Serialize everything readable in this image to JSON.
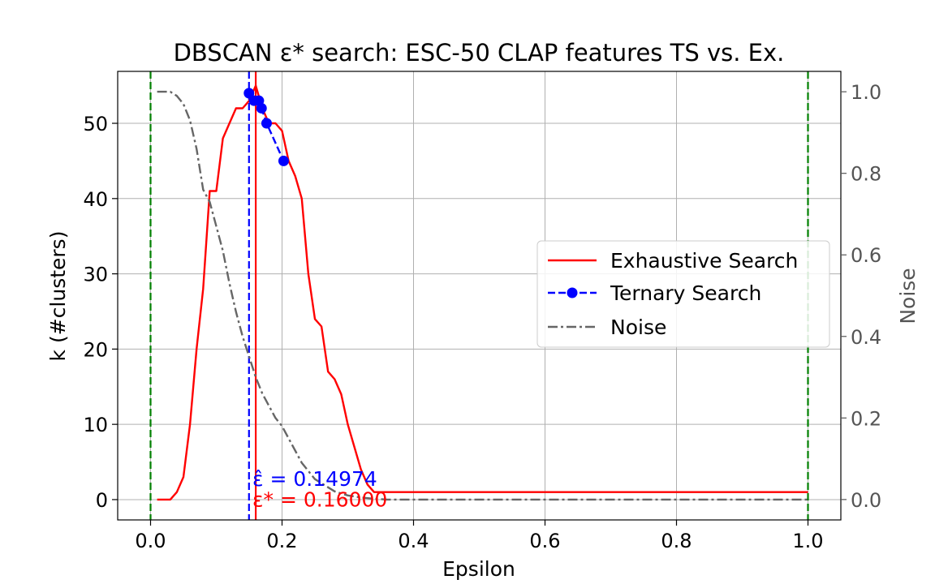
{
  "chart_data": {
    "type": "line",
    "title": "DBSCAN ε* search: ESC-50 CLAP features TS vs. Ex.",
    "xlabel": "Epsilon",
    "ylabel": "k (#clusters)",
    "ylabel_right": "Noise",
    "xlim": [
      -0.05,
      1.05
    ],
    "ylim": [
      -2.7,
      56.9
    ],
    "ylim_right": [
      -0.05,
      1.05
    ],
    "xticks": [
      "0.0",
      "0.2",
      "0.4",
      "0.6",
      "0.8",
      "1.0"
    ],
    "yticks": [
      "0",
      "10",
      "20",
      "30",
      "40",
      "50"
    ],
    "yticks_right": [
      "0.0",
      "0.2",
      "0.4",
      "0.6",
      "0.8",
      "1.0"
    ],
    "grid": true,
    "legend_position": "center-right",
    "series": [
      {
        "name": "Exhaustive Search",
        "axis": "left",
        "color": "#ff0000",
        "style": "solid",
        "x": [
          0.01,
          0.02,
          0.03,
          0.04,
          0.05,
          0.06,
          0.07,
          0.08,
          0.09,
          0.1,
          0.11,
          0.12,
          0.13,
          0.14,
          0.15,
          0.16,
          0.17,
          0.18,
          0.19,
          0.2,
          0.21,
          0.22,
          0.23,
          0.24,
          0.25,
          0.26,
          0.27,
          0.28,
          0.29,
          0.3,
          0.31,
          0.32,
          0.33,
          0.34,
          0.35,
          0.36,
          0.37,
          0.38,
          0.39,
          0.4,
          0.5,
          0.6,
          0.7,
          0.8,
          0.9,
          1.0
        ],
        "y": [
          0,
          0,
          0,
          1,
          3,
          10,
          20,
          28,
          41,
          41,
          48,
          50,
          52,
          52,
          53,
          55,
          52,
          50,
          50,
          49,
          45,
          43,
          40,
          30,
          24,
          23,
          17,
          16,
          14,
          10,
          7,
          4,
          2,
          1,
          1,
          1,
          1,
          1,
          1,
          1,
          1,
          1,
          1,
          1,
          1,
          1
        ]
      },
      {
        "name": "Ternary Search",
        "axis": "left",
        "color": "#0000ff",
        "style": "dashed",
        "marker": "circle",
        "x": [
          0.14974,
          0.1575,
          0.1647,
          0.1688,
          0.1765,
          0.2024
        ],
        "y": [
          54,
          53,
          53,
          52,
          50,
          45
        ]
      },
      {
        "name": "Noise",
        "axis": "right",
        "color": "#666666",
        "style": "dashdot",
        "x": [
          0.01,
          0.02,
          0.03,
          0.04,
          0.05,
          0.06,
          0.07,
          0.08,
          0.09,
          0.1,
          0.11,
          0.12,
          0.13,
          0.14,
          0.15,
          0.16,
          0.17,
          0.18,
          0.19,
          0.2,
          0.21,
          0.22,
          0.23,
          0.24,
          0.25,
          0.26,
          0.27,
          0.28,
          0.29,
          0.3,
          0.32,
          0.34,
          0.36,
          0.38,
          0.4,
          0.5,
          0.6,
          0.7,
          0.8,
          0.9,
          1.0
        ],
        "y": [
          1.0,
          1.0,
          1.0,
          0.99,
          0.97,
          0.93,
          0.86,
          0.76,
          0.73,
          0.67,
          0.61,
          0.53,
          0.46,
          0.4,
          0.35,
          0.3,
          0.26,
          0.23,
          0.2,
          0.18,
          0.15,
          0.12,
          0.09,
          0.07,
          0.05,
          0.04,
          0.03,
          0.02,
          0.015,
          0.01,
          0.005,
          0.002,
          0.0,
          0.0,
          0.0,
          0.0,
          0.0,
          0.0,
          0.0,
          0.0,
          0.0
        ]
      }
    ],
    "vlines": [
      {
        "x": 0.0,
        "color": "#008000",
        "style": "dashed"
      },
      {
        "x": 1.0,
        "color": "#008000",
        "style": "dashed"
      },
      {
        "x": 0.14974,
        "color": "#0000ff",
        "style": "dashed"
      },
      {
        "x": 0.16,
        "color": "#ff0000",
        "style": "solid"
      }
    ],
    "annotations": [
      {
        "text": "ε̂ = 0.14974",
        "x": 0.155,
        "y": 1.8,
        "color": "#0000ff"
      },
      {
        "text": "ε* = 0.16000",
        "x": 0.155,
        "y": -0.9,
        "color": "#ff0000"
      }
    ]
  }
}
